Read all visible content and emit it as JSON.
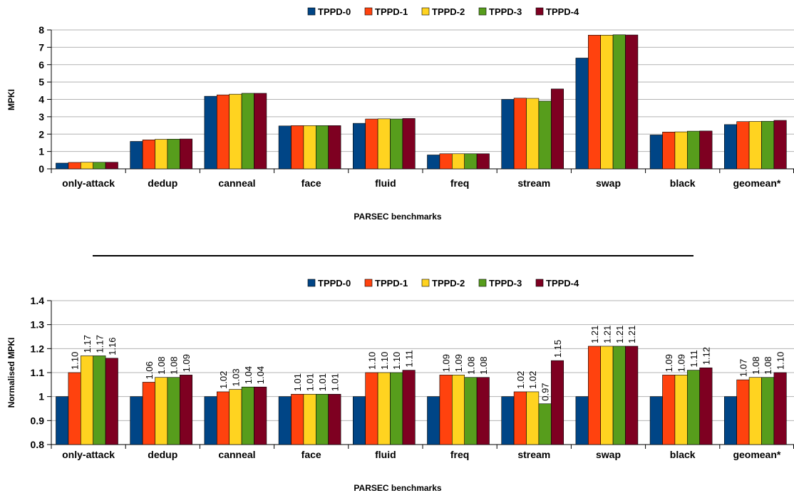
{
  "colors": {
    "TPPD-0": "#004586",
    "TPPD-1": "#ff420e",
    "TPPD-2": "#ffd320",
    "TPPD-3": "#579d1c",
    "TPPD-4": "#7e0021"
  },
  "chart_data": [
    {
      "type": "bar",
      "xlabel": "PARSEC benchmarks",
      "ylabel": "MPKI",
      "ylim": [
        0,
        8
      ],
      "yticks": [
        "0",
        "1",
        "2",
        "3",
        "4",
        "5",
        "6",
        "7",
        "8"
      ],
      "grid": true,
      "legend_position": "top",
      "categories": [
        "only-attack",
        "dedup",
        "canneal",
        "face",
        "fluid",
        "freq",
        "stream",
        "swap",
        "black",
        "geomean*"
      ],
      "series": [
        {
          "name": "TPPD-0",
          "values": [
            0.33,
            1.58,
            4.18,
            2.47,
            2.62,
            0.8,
            4.0,
            6.38,
            1.95,
            2.55
          ]
        },
        {
          "name": "TPPD-1",
          "values": [
            0.37,
            1.67,
            4.26,
            2.49,
            2.87,
            0.87,
            4.07,
            7.7,
            2.12,
            2.72
          ]
        },
        {
          "name": "TPPD-2",
          "values": [
            0.38,
            1.7,
            4.3,
            2.49,
            2.88,
            0.87,
            4.06,
            7.7,
            2.13,
            2.73
          ]
        },
        {
          "name": "TPPD-3",
          "values": [
            0.38,
            1.71,
            4.35,
            2.49,
            2.87,
            0.87,
            3.9,
            7.72,
            2.17,
            2.74
          ]
        },
        {
          "name": "TPPD-4",
          "values": [
            0.38,
            1.72,
            4.35,
            2.49,
            2.9,
            0.87,
            4.6,
            7.71,
            2.18,
            2.79
          ]
        }
      ]
    },
    {
      "type": "bar",
      "xlabel": "PARSEC benchmarks",
      "ylabel": "Normalised MPKI",
      "ylim": [
        0.8,
        1.4
      ],
      "yticks": [
        "0.8",
        "0.9",
        "1",
        "1.1",
        "1.2",
        "1.3",
        "1.4"
      ],
      "grid": true,
      "legend_position": "top",
      "categories": [
        "only-attack",
        "dedup",
        "canneal",
        "face",
        "fluid",
        "freq",
        "stream",
        "swap",
        "black",
        "geomean*"
      ],
      "series": [
        {
          "name": "TPPD-0",
          "values": [
            1,
            1,
            1,
            1,
            1,
            1,
            1,
            1,
            1,
            1
          ]
        },
        {
          "name": "TPPD-1",
          "values": [
            1.1,
            1.06,
            1.02,
            1.01,
            1.1,
            1.09,
            1.02,
            1.21,
            1.09,
            1.07
          ]
        },
        {
          "name": "TPPD-2",
          "values": [
            1.17,
            1.08,
            1.03,
            1.01,
            1.1,
            1.09,
            1.02,
            1.21,
            1.09,
            1.08
          ]
        },
        {
          "name": "TPPD-3",
          "values": [
            1.17,
            1.08,
            1.04,
            1.01,
            1.1,
            1.08,
            0.97,
            1.21,
            1.11,
            1.08
          ]
        },
        {
          "name": "TPPD-4",
          "values": [
            1.16,
            1.09,
            1.04,
            1.01,
            1.11,
            1.08,
            1.15,
            1.21,
            1.12,
            1.1
          ]
        }
      ],
      "data_labels": [
        [
          "1.10",
          "1.17",
          "1.17",
          "1.16"
        ],
        [
          "1.06",
          "1.08",
          "1.08",
          "1.09"
        ],
        [
          "1.02",
          "1.03",
          "1.04",
          "1.04"
        ],
        [
          "1.01",
          "1.01",
          "1.01",
          "1.01"
        ],
        [
          "1.10",
          "1.10",
          "1.10",
          "1.11"
        ],
        [
          "1.09",
          "1.09",
          "1.08",
          "1.08"
        ],
        [
          "1.02",
          "1.02",
          "0.97",
          "1.15"
        ],
        [
          "1.21",
          "1.21",
          "1.21",
          "1.21"
        ],
        [
          "1.09",
          "1.09",
          "1.11",
          "1.12"
        ],
        [
          "1.07",
          "1.08",
          "1.08",
          "1.10"
        ]
      ]
    }
  ]
}
